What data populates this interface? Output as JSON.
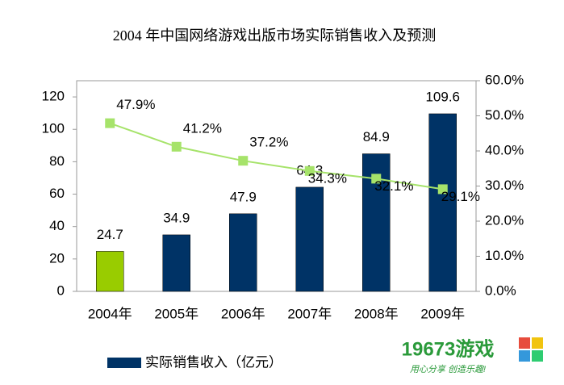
{
  "chart_data": {
    "type": "bar-line",
    "title": "2004 年中国网络游戏出版市场实际销售收入及预测",
    "categories": [
      "2004年",
      "2005年",
      "2006年",
      "2007年",
      "2008年",
      "2009年"
    ],
    "series": [
      {
        "name": "实际销售收入（亿元）",
        "type": "bar",
        "color": "#003366",
        "colors": [
          "#99cc00",
          "#003366",
          "#003366",
          "#003366",
          "#003366",
          "#003366"
        ],
        "values": [
          24.7,
          34.9,
          47.9,
          64.3,
          84.9,
          109.6
        ]
      },
      {
        "type": "line",
        "axis": "y2",
        "color": "#a6e36a",
        "values": [
          47.9,
          41.2,
          37.2,
          34.3,
          32.1,
          29.1
        ],
        "value_labels": [
          "47.9%",
          "41.2%",
          "37.2%",
          "34.3%",
          "32.1%",
          "29.1%"
        ]
      }
    ],
    "ylim": [
      0,
      130
    ],
    "yticks": [
      0,
      20,
      40,
      60,
      80,
      100,
      120
    ],
    "y2lim": [
      0,
      60
    ],
    "y2ticks": [
      {
        "value": 0,
        "label": "0.0%"
      },
      {
        "value": 10,
        "label": "10.0%"
      },
      {
        "value": 20,
        "label": "20.0%"
      },
      {
        "value": 30,
        "label": "30.0%"
      },
      {
        "value": 40,
        "label": "40.0%"
      },
      {
        "value": 50,
        "label": "50.0%"
      },
      {
        "value": 60,
        "label": "60.0%"
      }
    ],
    "legend": "bottom-left"
  },
  "watermark": {
    "brand": "19673游戏",
    "slogan": "用心分享 创造乐趣!"
  }
}
